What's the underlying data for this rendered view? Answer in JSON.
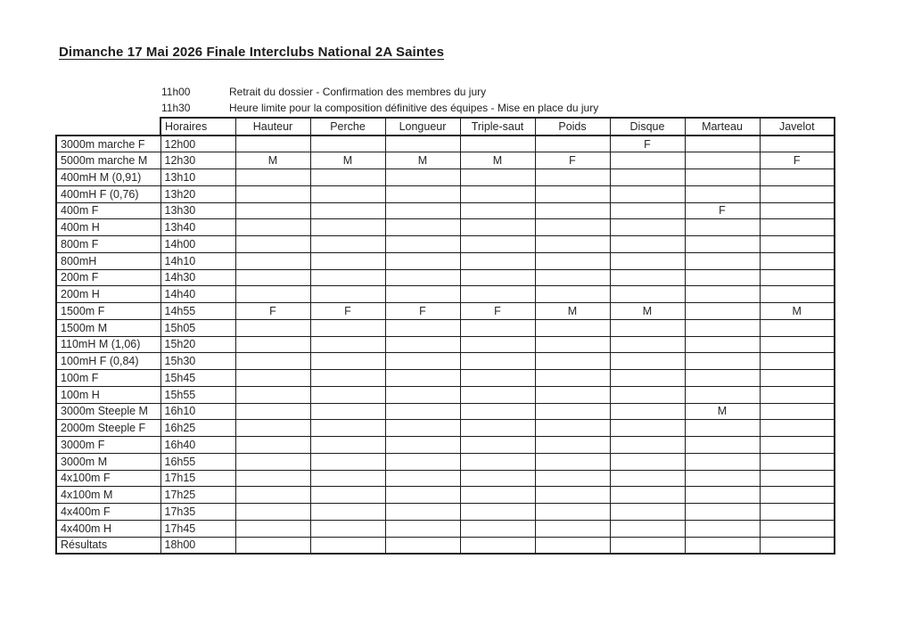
{
  "document": {
    "title": "Dimanche 17 Mai 2026 Finale Interclubs National 2A Saintes"
  },
  "notes": [
    {
      "time": "11h00",
      "text": "Retrait du dossier - Confirmation des membres du jury"
    },
    {
      "time": "11h30",
      "text": "Heure limite pour la composition définitive des équipes - Mise en place du jury"
    }
  ],
  "schedule_table": {
    "headers": [
      "Horaires",
      "Hauteur",
      "Perche",
      "Longueur",
      "Triple-saut",
      "Poids",
      "Disque",
      "Marteau",
      "Javelot"
    ],
    "rows": [
      {
        "event": "3000m marche F",
        "time": "12h00",
        "marks": [
          "",
          "",
          "",
          "",
          "",
          "F",
          "",
          ""
        ]
      },
      {
        "event": "5000m marche M",
        "time": "12h30",
        "marks": [
          "M",
          "M",
          "M",
          "M",
          "F",
          "",
          "",
          "F"
        ]
      },
      {
        "event": "400mH M (0,91)",
        "time": "13h10",
        "marks": [
          "",
          "",
          "",
          "",
          "",
          "",
          "",
          ""
        ]
      },
      {
        "event": "400mH F (0,76)",
        "time": "13h20",
        "marks": [
          "",
          "",
          "",
          "",
          "",
          "",
          "",
          ""
        ]
      },
      {
        "event": "400m F",
        "time": "13h30",
        "marks": [
          "",
          "",
          "",
          "",
          "",
          "",
          "F",
          ""
        ]
      },
      {
        "event": "400m H",
        "time": "13h40",
        "marks": [
          "",
          "",
          "",
          "",
          "",
          "",
          "",
          ""
        ]
      },
      {
        "event": "800m F",
        "time": "14h00",
        "marks": [
          "",
          "",
          "",
          "",
          "",
          "",
          "",
          ""
        ]
      },
      {
        "event": "800mH",
        "time": "14h10",
        "marks": [
          "",
          "",
          "",
          "",
          "",
          "",
          "",
          ""
        ]
      },
      {
        "event": "200m F",
        "time": "14h30",
        "marks": [
          "",
          "",
          "",
          "",
          "",
          "",
          "",
          ""
        ]
      },
      {
        "event": "200m H",
        "time": "14h40",
        "marks": [
          "",
          "",
          "",
          "",
          "",
          "",
          "",
          ""
        ]
      },
      {
        "event": "1500m F",
        "time": "14h55",
        "marks": [
          "F",
          "F",
          "F",
          "F",
          "M",
          "M",
          "",
          "M"
        ]
      },
      {
        "event": "1500m M",
        "time": "15h05",
        "marks": [
          "",
          "",
          "",
          "",
          "",
          "",
          "",
          ""
        ]
      },
      {
        "event": "110mH M (1,06)",
        "time": "15h20",
        "marks": [
          "",
          "",
          "",
          "",
          "",
          "",
          "",
          ""
        ]
      },
      {
        "event": "100mH F (0,84)",
        "time": "15h30",
        "marks": [
          "",
          "",
          "",
          "",
          "",
          "",
          "",
          ""
        ]
      },
      {
        "event": "100m F",
        "time": "15h45",
        "marks": [
          "",
          "",
          "",
          "",
          "",
          "",
          "",
          ""
        ]
      },
      {
        "event": "100m H",
        "time": "15h55",
        "marks": [
          "",
          "",
          "",
          "",
          "",
          "",
          "",
          ""
        ]
      },
      {
        "event": "3000m Steeple M",
        "time": "16h10",
        "marks": [
          "",
          "",
          "",
          "",
          "",
          "",
          "M",
          ""
        ]
      },
      {
        "event": "2000m Steeple F",
        "time": "16h25",
        "marks": [
          "",
          "",
          "",
          "",
          "",
          "",
          "",
          ""
        ]
      },
      {
        "event": "3000m F",
        "time": "16h40",
        "marks": [
          "",
          "",
          "",
          "",
          "",
          "",
          "",
          ""
        ]
      },
      {
        "event": "3000m M",
        "time": "16h55",
        "marks": [
          "",
          "",
          "",
          "",
          "",
          "",
          "",
          ""
        ]
      },
      {
        "event": "4x100m F",
        "time": "17h15",
        "marks": [
          "",
          "",
          "",
          "",
          "",
          "",
          "",
          ""
        ]
      },
      {
        "event": "4x100m M",
        "time": "17h25",
        "marks": [
          "",
          "",
          "",
          "",
          "",
          "",
          "",
          ""
        ]
      },
      {
        "event": "4x400m F",
        "time": "17h35",
        "marks": [
          "",
          "",
          "",
          "",
          "",
          "",
          "",
          ""
        ]
      },
      {
        "event": "4x400m H",
        "time": "17h45",
        "marks": [
          "",
          "",
          "",
          "",
          "",
          "",
          "",
          ""
        ]
      },
      {
        "event": "Résultats",
        "time": "18h00",
        "marks": [
          "",
          "",
          "",
          "",
          "",
          "",
          "",
          ""
        ]
      }
    ]
  },
  "colors": {
    "border": "#1c1c1c",
    "text": "#1f1f1f",
    "background": "#ffffff"
  }
}
